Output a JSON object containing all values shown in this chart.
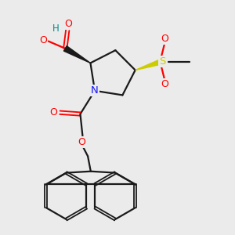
{
  "bg_color": "#ebebeb",
  "atom_colors": {
    "O": "#ff0000",
    "N": "#1515ff",
    "S": "#cccc00",
    "H": "#008888",
    "C": "#1a1a1a"
  }
}
